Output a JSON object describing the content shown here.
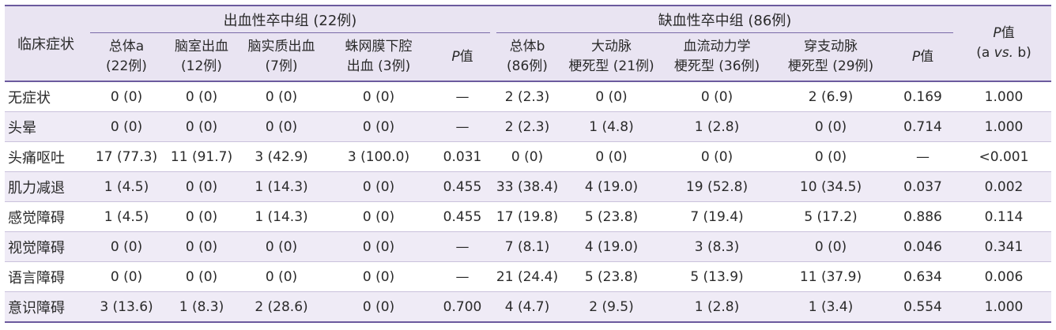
{
  "header": {
    "row_label": "临床症状",
    "hemorrhagic_group": "出血性卒中组 (22例)",
    "ischemic_group": "缺血性卒中组 (86例)",
    "p_ab": {
      "p": "P",
      "suffix": "值",
      "line2_open": "(a ",
      "vs": "vs.",
      "line2_close": " b)"
    },
    "subcols": [
      {
        "line1": "总体a",
        "line2": "(22例)"
      },
      {
        "line1": "脑室出血",
        "line2": "(12例)"
      },
      {
        "line1": "脑实质出血",
        "line2": "(7例)"
      },
      {
        "line1": "蛛网膜下腔",
        "line2": "出血 (3例)"
      },
      {
        "p": "P",
        "suffix": "值"
      },
      {
        "line1": "总体b",
        "line2": "(86例)"
      },
      {
        "line1": "大动脉",
        "line2": "梗死型 (21例)"
      },
      {
        "line1": "血流动力学",
        "line2": "梗死型 (36例)"
      },
      {
        "line1": "穿支动脉",
        "line2": "梗死型 (29例)"
      },
      {
        "p": "P",
        "suffix": "值"
      }
    ]
  },
  "rows": [
    [
      "无症状",
      "0 (0)",
      "0 (0)",
      "0 (0)",
      "0 (0)",
      "—",
      "2 (2.3)",
      "0 (0)",
      "0 (0)",
      "2 (6.9)",
      "0.169",
      "1.000"
    ],
    [
      "头晕",
      "0 (0)",
      "0 (0)",
      "0 (0)",
      "0 (0)",
      "—",
      "2 (2.3)",
      "1 (4.8)",
      "1 (2.8)",
      "0 (0)",
      "0.714",
      "1.000"
    ],
    [
      "头痛呕吐",
      "17 (77.3)",
      "11 (91.7)",
      "3 (42.9)",
      "3 (100.0)",
      "0.031",
      "0 (0)",
      "0 (0)",
      "0 (0)",
      "0 (0)",
      "—",
      "<0.001"
    ],
    [
      "肌力减退",
      "1 (4.5)",
      "0 (0)",
      "1 (14.3)",
      "0 (0)",
      "0.455",
      "33 (38.4)",
      "4 (19.0)",
      "19 (52.8)",
      "10 (34.5)",
      "0.037",
      "0.002"
    ],
    [
      "感觉障碍",
      "1 (4.5)",
      "0 (0)",
      "1 (14.3)",
      "0 (0)",
      "0.455",
      "17 (19.8)",
      "5 (23.8)",
      "7 (19.4)",
      "5 (17.2)",
      "0.886",
      "0.114"
    ],
    [
      "视觉障碍",
      "0 (0)",
      "0 (0)",
      "0 (0)",
      "0 (0)",
      "—",
      "7 (8.1)",
      "4 (19.0)",
      "3 (8.3)",
      "0 (0)",
      "0.046",
      "0.341"
    ],
    [
      "语言障碍",
      "0 (0)",
      "0 (0)",
      "0 (0)",
      "0 (0)",
      "—",
      "21 (24.4)",
      "5 (23.8)",
      "5 (13.9)",
      "11 (37.9)",
      "0.634",
      "0.006"
    ],
    [
      "意识障碍",
      "3 (13.6)",
      "1 (8.3)",
      "2 (28.6)",
      "0 (0)",
      "0.700",
      "4 (4.7)",
      "2 (9.5)",
      "1 (2.8)",
      "1 (3.4)",
      "0.554",
      "1.000"
    ]
  ],
  "colors": {
    "header_bg": "#e9e4f2",
    "rule": "#6b5a9e",
    "stripe": "#efebf6"
  }
}
